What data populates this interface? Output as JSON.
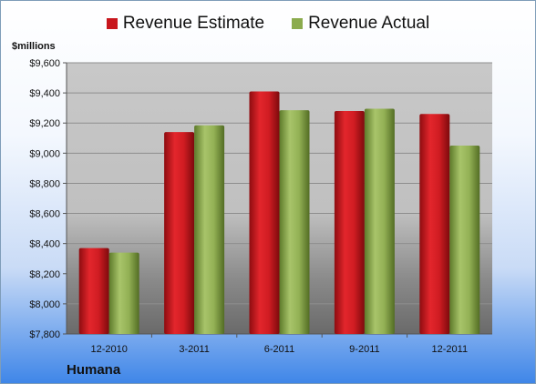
{
  "chart_data": {
    "type": "bar",
    "categories": [
      "12-2010",
      "3-2011",
      "6-2011",
      "9-2011",
      "12-2011"
    ],
    "series": [
      {
        "name": "Revenue Estimate",
        "values": [
          8370,
          9140,
          9410,
          9280,
          9260
        ]
      },
      {
        "name": "Revenue Actual",
        "values": [
          8340,
          9185,
          9285,
          9295,
          9050
        ]
      }
    ],
    "ylabel": "$millions",
    "ylim": [
      7800,
      9600
    ],
    "yticks": [
      "$7,800",
      "$8,000",
      "$8,200",
      "$8,400",
      "$8,600",
      "$8,800",
      "$9,000",
      "$9,200",
      "$9,400",
      "$9,600"
    ],
    "grid": true,
    "legend_position": "top-center",
    "colors": {
      "estimate": "#c8161d",
      "actual": "#8bab4d"
    }
  },
  "footer": {
    "company": "Humana"
  }
}
